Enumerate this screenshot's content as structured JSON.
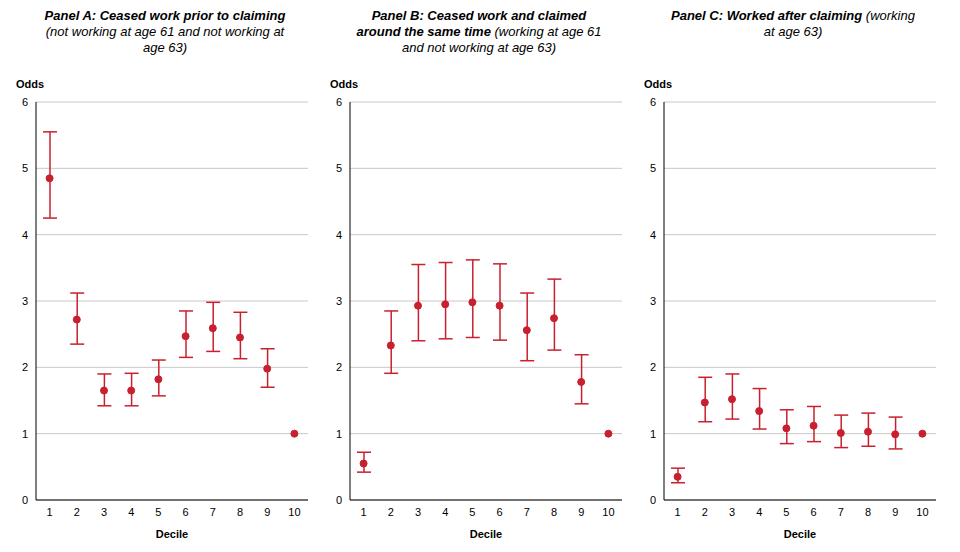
{
  "chart_data": [
    {
      "type": "scatter",
      "title": "Panel A: Ceased work prior to claiming",
      "subtitle": "(not working at age 61 and not working at age 63)",
      "x_label": "Decile",
      "y_label": "Odds",
      "categories": [
        "1",
        "2",
        "3",
        "4",
        "5",
        "6",
        "7",
        "8",
        "9",
        "10"
      ],
      "values": [
        4.85,
        2.72,
        1.65,
        1.65,
        1.82,
        2.47,
        2.59,
        2.45,
        1.98,
        1
      ],
      "ci_low": [
        4.25,
        2.35,
        1.42,
        1.42,
        1.57,
        2.15,
        2.24,
        2.13,
        1.7,
        null
      ],
      "ci_high": [
        5.55,
        3.12,
        1.9,
        1.91,
        2.11,
        2.85,
        2.98,
        2.83,
        2.28,
        null
      ],
      "color": "#c8202f",
      "marker": "circle",
      "ylim": [
        0,
        6
      ],
      "yticks": [
        0,
        1,
        2,
        3,
        4,
        5,
        6
      ],
      "grid": true
    },
    {
      "type": "scatter",
      "title": "Panel B: Ceased work and claimed around the same time",
      "subtitle": "(working at age 61 and not working at age 63)",
      "x_label": "Decile",
      "y_label": "Odds",
      "categories": [
        "1",
        "2",
        "3",
        "4",
        "5",
        "6",
        "7",
        "8",
        "9",
        "10"
      ],
      "values": [
        0.55,
        2.33,
        2.93,
        2.95,
        2.98,
        2.93,
        2.56,
        2.74,
        1.78,
        1
      ],
      "ci_low": [
        0.42,
        1.91,
        2.4,
        2.43,
        2.45,
        2.41,
        2.1,
        2.26,
        1.45,
        null
      ],
      "ci_high": [
        0.72,
        2.85,
        3.55,
        3.58,
        3.62,
        3.56,
        3.12,
        3.33,
        2.19,
        null
      ],
      "color": "#c8202f",
      "marker": "circle",
      "ylim": [
        0,
        6
      ],
      "yticks": [
        0,
        1,
        2,
        3,
        4,
        5,
        6
      ],
      "grid": true
    },
    {
      "type": "scatter",
      "title": "Panel C: Worked after claiming",
      "subtitle": "(working at age 63)",
      "x_label": "Decile",
      "y_label": "Odds",
      "categories": [
        "1",
        "2",
        "3",
        "4",
        "5",
        "6",
        "7",
        "8",
        "9",
        "10"
      ],
      "values": [
        0.35,
        1.47,
        1.52,
        1.34,
        1.08,
        1.12,
        1.01,
        1.03,
        0.99,
        1
      ],
      "ci_low": [
        0.26,
        1.18,
        1.22,
        1.07,
        0.85,
        0.88,
        0.79,
        0.81,
        0.77,
        null
      ],
      "ci_high": [
        0.48,
        1.85,
        1.9,
        1.68,
        1.36,
        1.41,
        1.28,
        1.31,
        1.25,
        null
      ],
      "color": "#c8202f",
      "marker": "circle",
      "ylim": [
        0,
        6
      ],
      "yticks": [
        0,
        1,
        2,
        3,
        4,
        5,
        6
      ],
      "grid": true
    }
  ]
}
